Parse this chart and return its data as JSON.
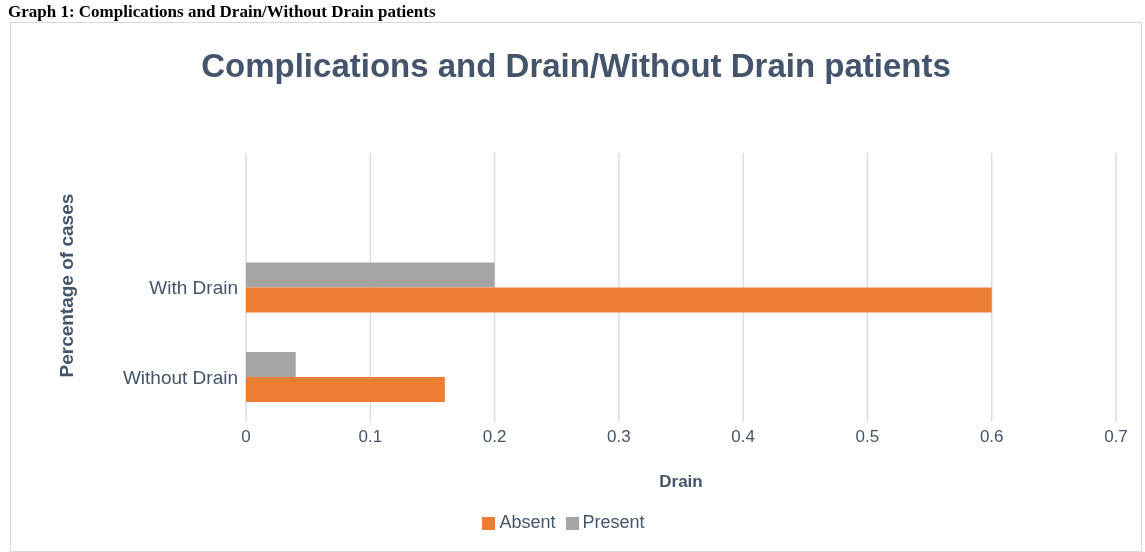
{
  "chart_data": {
    "type": "bar",
    "orientation": "horizontal",
    "title": "Complications and Drain/Without Drain patients",
    "xlabel": "Drain",
    "ylabel": "Percentage of cases",
    "categories": [
      null,
      "With Drain",
      "Without Drain"
    ],
    "series": [
      {
        "name": "Present",
        "color": "#a5a5a5",
        "values": [
          null,
          0.2,
          0.04
        ]
      },
      {
        "name": "Absent",
        "color": "#ed7d31",
        "values": [
          null,
          0.6,
          0.16
        ]
      }
    ],
    "xlim": [
      0,
      0.7
    ],
    "xticks": [
      0,
      0.1,
      0.2,
      0.3,
      0.4,
      0.5,
      0.6,
      0.7
    ],
    "grid": "x",
    "legend": "bottom",
    "annotations": [
      "Graph 1: Complications and Drain/Without Drain patients"
    ]
  }
}
